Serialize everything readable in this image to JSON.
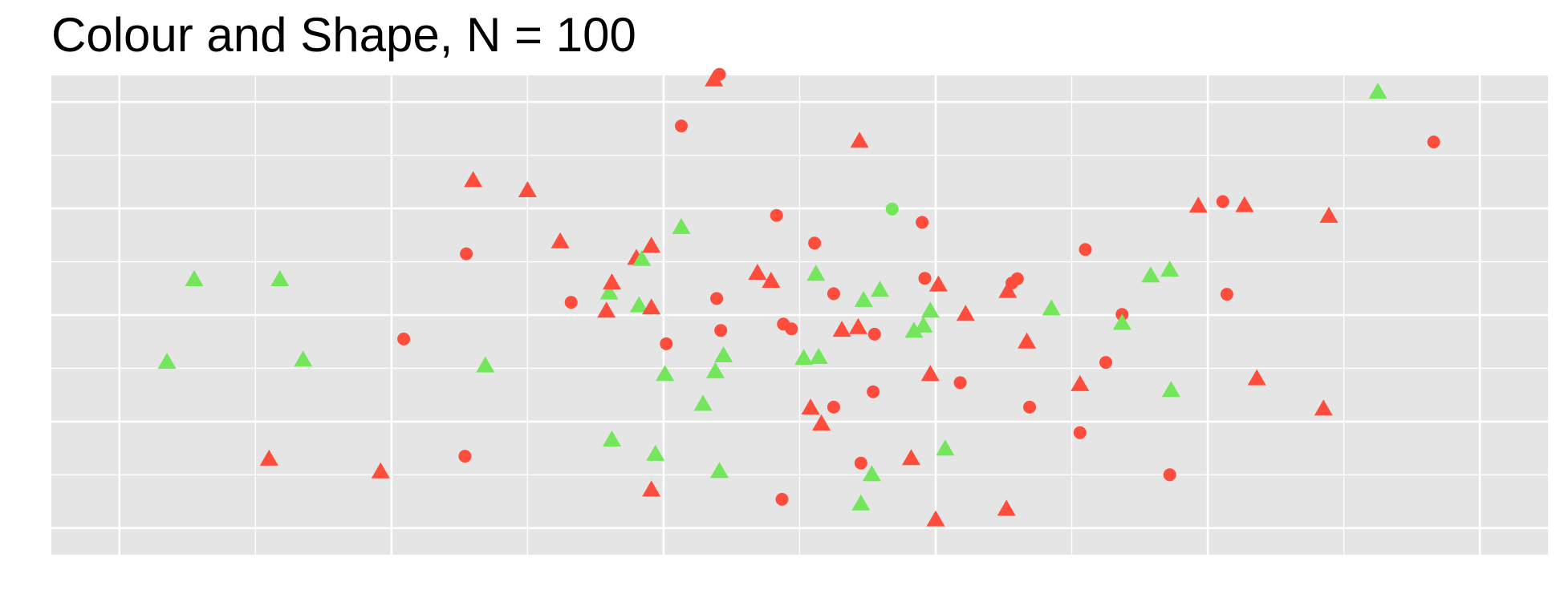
{
  "chart_data": {
    "type": "scatter",
    "title": "Colour and Shape, N = 100",
    "xlabel": "",
    "ylabel": "",
    "xlim": [
      -0.05,
      1.05
    ],
    "ylim": [
      -0.05,
      0.85
    ],
    "grid": true,
    "legend": "none",
    "colors": {
      "red": "#ff4d3d",
      "green": "#73e65c",
      "panel": "#e5e5e5",
      "grid": "#ffffff"
    },
    "points": [
      {
        "x": 0.035,
        "y": 0.312,
        "shape": "triangle",
        "color": "green"
      },
      {
        "x": 0.055,
        "y": 0.467,
        "shape": "triangle",
        "color": "green"
      },
      {
        "x": 0.11,
        "y": 0.13,
        "shape": "triangle",
        "color": "red"
      },
      {
        "x": 0.118,
        "y": 0.467,
        "shape": "triangle",
        "color": "green"
      },
      {
        "x": 0.135,
        "y": 0.316,
        "shape": "triangle",
        "color": "green"
      },
      {
        "x": 0.192,
        "y": 0.106,
        "shape": "triangle",
        "color": "red"
      },
      {
        "x": 0.209,
        "y": 0.355,
        "shape": "circle",
        "color": "red"
      },
      {
        "x": 0.254,
        "y": 0.135,
        "shape": "circle",
        "color": "red"
      },
      {
        "x": 0.255,
        "y": 0.515,
        "shape": "circle",
        "color": "red"
      },
      {
        "x": 0.26,
        "y": 0.653,
        "shape": "triangle",
        "color": "red"
      },
      {
        "x": 0.269,
        "y": 0.305,
        "shape": "triangle",
        "color": "green"
      },
      {
        "x": 0.3,
        "y": 0.634,
        "shape": "triangle",
        "color": "red"
      },
      {
        "x": 0.324,
        "y": 0.538,
        "shape": "triangle",
        "color": "red"
      },
      {
        "x": 0.332,
        "y": 0.424,
        "shape": "circle",
        "color": "red"
      },
      {
        "x": 0.358,
        "y": 0.408,
        "shape": "triangle",
        "color": "red"
      },
      {
        "x": 0.36,
        "y": 0.442,
        "shape": "triangle",
        "color": "green"
      },
      {
        "x": 0.362,
        "y": 0.166,
        "shape": "triangle",
        "color": "green"
      },
      {
        "x": 0.362,
        "y": 0.461,
        "shape": "triangle",
        "color": "red"
      },
      {
        "x": 0.38,
        "y": 0.507,
        "shape": "triangle",
        "color": "red"
      },
      {
        "x": 0.382,
        "y": 0.418,
        "shape": "triangle",
        "color": "green"
      },
      {
        "x": 0.384,
        "y": 0.505,
        "shape": "triangle",
        "color": "green"
      },
      {
        "x": 0.391,
        "y": 0.072,
        "shape": "triangle",
        "color": "red"
      },
      {
        "x": 0.391,
        "y": 0.53,
        "shape": "triangle",
        "color": "red"
      },
      {
        "x": 0.391,
        "y": 0.414,
        "shape": "triangle",
        "color": "red"
      },
      {
        "x": 0.394,
        "y": 0.139,
        "shape": "triangle",
        "color": "green"
      },
      {
        "x": 0.401,
        "y": 0.289,
        "shape": "triangle",
        "color": "green"
      },
      {
        "x": 0.402,
        "y": 0.346,
        "shape": "circle",
        "color": "red"
      },
      {
        "x": 0.413,
        "y": 0.755,
        "shape": "circle",
        "color": "red"
      },
      {
        "x": 0.413,
        "y": 0.565,
        "shape": "triangle",
        "color": "green"
      },
      {
        "x": 0.429,
        "y": 0.233,
        "shape": "triangle",
        "color": "green"
      },
      {
        "x": 0.437,
        "y": 0.842,
        "shape": "triangle",
        "color": "red"
      },
      {
        "x": 0.438,
        "y": 0.294,
        "shape": "triangle",
        "color": "green"
      },
      {
        "x": 0.439,
        "y": 0.431,
        "shape": "circle",
        "color": "red"
      },
      {
        "x": 0.441,
        "y": 0.852,
        "shape": "circle",
        "color": "red"
      },
      {
        "x": 0.442,
        "y": 0.371,
        "shape": "circle",
        "color": "red"
      },
      {
        "x": 0.441,
        "y": 0.107,
        "shape": "triangle",
        "color": "green"
      },
      {
        "x": 0.444,
        "y": 0.324,
        "shape": "triangle",
        "color": "green"
      },
      {
        "x": 0.469,
        "y": 0.479,
        "shape": "triangle",
        "color": "red"
      },
      {
        "x": 0.479,
        "y": 0.464,
        "shape": "triangle",
        "color": "red"
      },
      {
        "x": 0.483,
        "y": 0.587,
        "shape": "circle",
        "color": "red"
      },
      {
        "x": 0.487,
        "y": 0.054,
        "shape": "circle",
        "color": "red"
      },
      {
        "x": 0.488,
        "y": 0.383,
        "shape": "circle",
        "color": "red"
      },
      {
        "x": 0.494,
        "y": 0.374,
        "shape": "circle",
        "color": "red"
      },
      {
        "x": 0.503,
        "y": 0.319,
        "shape": "triangle",
        "color": "green"
      },
      {
        "x": 0.508,
        "y": 0.226,
        "shape": "triangle",
        "color": "red"
      },
      {
        "x": 0.511,
        "y": 0.535,
        "shape": "circle",
        "color": "red"
      },
      {
        "x": 0.512,
        "y": 0.477,
        "shape": "triangle",
        "color": "green"
      },
      {
        "x": 0.514,
        "y": 0.321,
        "shape": "triangle",
        "color": "green"
      },
      {
        "x": 0.516,
        "y": 0.196,
        "shape": "triangle",
        "color": "red"
      },
      {
        "x": 0.525,
        "y": 0.227,
        "shape": "circle",
        "color": "red"
      },
      {
        "x": 0.525,
        "y": 0.44,
        "shape": "circle",
        "color": "red"
      },
      {
        "x": 0.531,
        "y": 0.372,
        "shape": "triangle",
        "color": "red"
      },
      {
        "x": 0.543,
        "y": 0.377,
        "shape": "triangle",
        "color": "red"
      },
      {
        "x": 0.544,
        "y": 0.727,
        "shape": "triangle",
        "color": "red"
      },
      {
        "x": 0.545,
        "y": 0.046,
        "shape": "triangle",
        "color": "green"
      },
      {
        "x": 0.545,
        "y": 0.122,
        "shape": "circle",
        "color": "red"
      },
      {
        "x": 0.547,
        "y": 0.428,
        "shape": "triangle",
        "color": "green"
      },
      {
        "x": 0.553,
        "y": 0.101,
        "shape": "triangle",
        "color": "green"
      },
      {
        "x": 0.554,
        "y": 0.256,
        "shape": "circle",
        "color": "red"
      },
      {
        "x": 0.555,
        "y": 0.364,
        "shape": "circle",
        "color": "red"
      },
      {
        "x": 0.559,
        "y": 0.447,
        "shape": "triangle",
        "color": "green"
      },
      {
        "x": 0.568,
        "y": 0.599,
        "shape": "circle",
        "color": "green"
      },
      {
        "x": 0.582,
        "y": 0.131,
        "shape": "triangle",
        "color": "red"
      },
      {
        "x": 0.584,
        "y": 0.37,
        "shape": "triangle",
        "color": "green"
      },
      {
        "x": 0.591,
        "y": 0.38,
        "shape": "triangle",
        "color": "green"
      },
      {
        "x": 0.59,
        "y": 0.574,
        "shape": "circle",
        "color": "red"
      },
      {
        "x": 0.592,
        "y": 0.469,
        "shape": "circle",
        "color": "red"
      },
      {
        "x": 0.596,
        "y": 0.408,
        "shape": "triangle",
        "color": "green"
      },
      {
        "x": 0.596,
        "y": 0.289,
        "shape": "triangle",
        "color": "red"
      },
      {
        "x": 0.6,
        "y": 0.016,
        "shape": "triangle",
        "color": "red"
      },
      {
        "x": 0.602,
        "y": 0.457,
        "shape": "triangle",
        "color": "red"
      },
      {
        "x": 0.607,
        "y": 0.149,
        "shape": "triangle",
        "color": "green"
      },
      {
        "x": 0.618,
        "y": 0.273,
        "shape": "circle",
        "color": "red"
      },
      {
        "x": 0.622,
        "y": 0.402,
        "shape": "triangle",
        "color": "red"
      },
      {
        "x": 0.652,
        "y": 0.036,
        "shape": "triangle",
        "color": "red"
      },
      {
        "x": 0.653,
        "y": 0.445,
        "shape": "triangle",
        "color": "red"
      },
      {
        "x": 0.656,
        "y": 0.46,
        "shape": "circle",
        "color": "red"
      },
      {
        "x": 0.66,
        "y": 0.468,
        "shape": "circle",
        "color": "red"
      },
      {
        "x": 0.667,
        "y": 0.35,
        "shape": "triangle",
        "color": "red"
      },
      {
        "x": 0.669,
        "y": 0.227,
        "shape": "circle",
        "color": "red"
      },
      {
        "x": 0.685,
        "y": 0.412,
        "shape": "triangle",
        "color": "green"
      },
      {
        "x": 0.706,
        "y": 0.27,
        "shape": "triangle",
        "color": "red"
      },
      {
        "x": 0.706,
        "y": 0.179,
        "shape": "circle",
        "color": "red"
      },
      {
        "x": 0.71,
        "y": 0.523,
        "shape": "circle",
        "color": "red"
      },
      {
        "x": 0.725,
        "y": 0.311,
        "shape": "circle",
        "color": "red"
      },
      {
        "x": 0.737,
        "y": 0.401,
        "shape": "circle",
        "color": "red"
      },
      {
        "x": 0.737,
        "y": 0.385,
        "shape": "triangle",
        "color": "green"
      },
      {
        "x": 0.758,
        "y": 0.474,
        "shape": "triangle",
        "color": "green"
      },
      {
        "x": 0.772,
        "y": 0.485,
        "shape": "triangle",
        "color": "green"
      },
      {
        "x": 0.772,
        "y": 0.1,
        "shape": "circle",
        "color": "red"
      },
      {
        "x": 0.773,
        "y": 0.259,
        "shape": "triangle",
        "color": "green"
      },
      {
        "x": 0.793,
        "y": 0.605,
        "shape": "triangle",
        "color": "red"
      },
      {
        "x": 0.811,
        "y": 0.613,
        "shape": "circle",
        "color": "red"
      },
      {
        "x": 0.814,
        "y": 0.439,
        "shape": "circle",
        "color": "red"
      },
      {
        "x": 0.827,
        "y": 0.606,
        "shape": "triangle",
        "color": "red"
      },
      {
        "x": 0.836,
        "y": 0.281,
        "shape": "triangle",
        "color": "red"
      },
      {
        "x": 0.885,
        "y": 0.224,
        "shape": "triangle",
        "color": "red"
      },
      {
        "x": 0.889,
        "y": 0.586,
        "shape": "triangle",
        "color": "red"
      },
      {
        "x": 0.925,
        "y": 0.819,
        "shape": "triangle",
        "color": "green"
      },
      {
        "x": 0.966,
        "y": 0.725,
        "shape": "circle",
        "color": "red"
      }
    ]
  }
}
